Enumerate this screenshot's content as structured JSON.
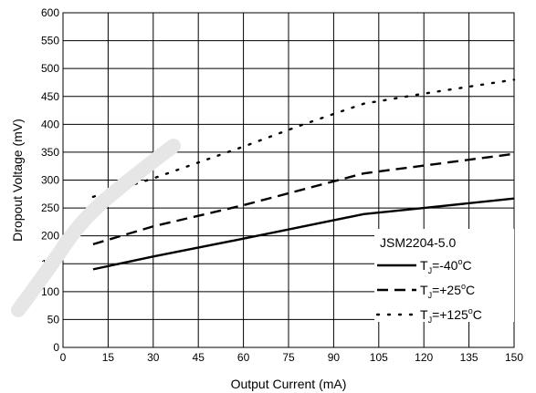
{
  "chart_data": {
    "type": "line",
    "title": "",
    "xlabel": "Output Current (mA)",
    "ylabel": "Dropout Voltage (mV)",
    "xlim": [
      0,
      150
    ],
    "ylim": [
      0,
      600
    ],
    "x_ticks": [
      "0",
      "15",
      "30",
      "45",
      "60",
      "75",
      "90",
      "105",
      "120",
      "135",
      "150"
    ],
    "y_ticks": [
      "0",
      "50",
      "100",
      "150",
      "200",
      "250",
      "300",
      "350",
      "400",
      "450",
      "500",
      "550",
      "600"
    ],
    "grid": true,
    "legend": {
      "title": "JSM2204-5.0",
      "position": "bottom-right"
    },
    "series": [
      {
        "name_prefix": "T",
        "name_sub": "J",
        "name_value": "=-40",
        "name_sup": "o",
        "name_unit": "C",
        "style": "solid",
        "color": "#000000",
        "x": [
          10,
          30,
          60,
          100,
          120,
          150
        ],
        "y": [
          140,
          163,
          195,
          239,
          250,
          267
        ]
      },
      {
        "name_prefix": "T",
        "name_sub": "J",
        "name_value": "=+25",
        "name_sup": "o",
        "name_unit": "C",
        "style": "dashed",
        "color": "#000000",
        "x": [
          10,
          30,
          60,
          100,
          120,
          150
        ],
        "y": [
          185,
          217,
          255,
          312,
          326,
          347
        ]
      },
      {
        "name_prefix": "T",
        "name_sub": "J",
        "name_value": "=+125",
        "name_sup": "o",
        "name_unit": "C",
        "style": "dotted",
        "color": "#000000",
        "x": [
          10,
          30,
          60,
          80,
          100,
          120,
          150
        ],
        "y": [
          270,
          303,
          360,
          400,
          437,
          455,
          480
        ]
      }
    ]
  }
}
